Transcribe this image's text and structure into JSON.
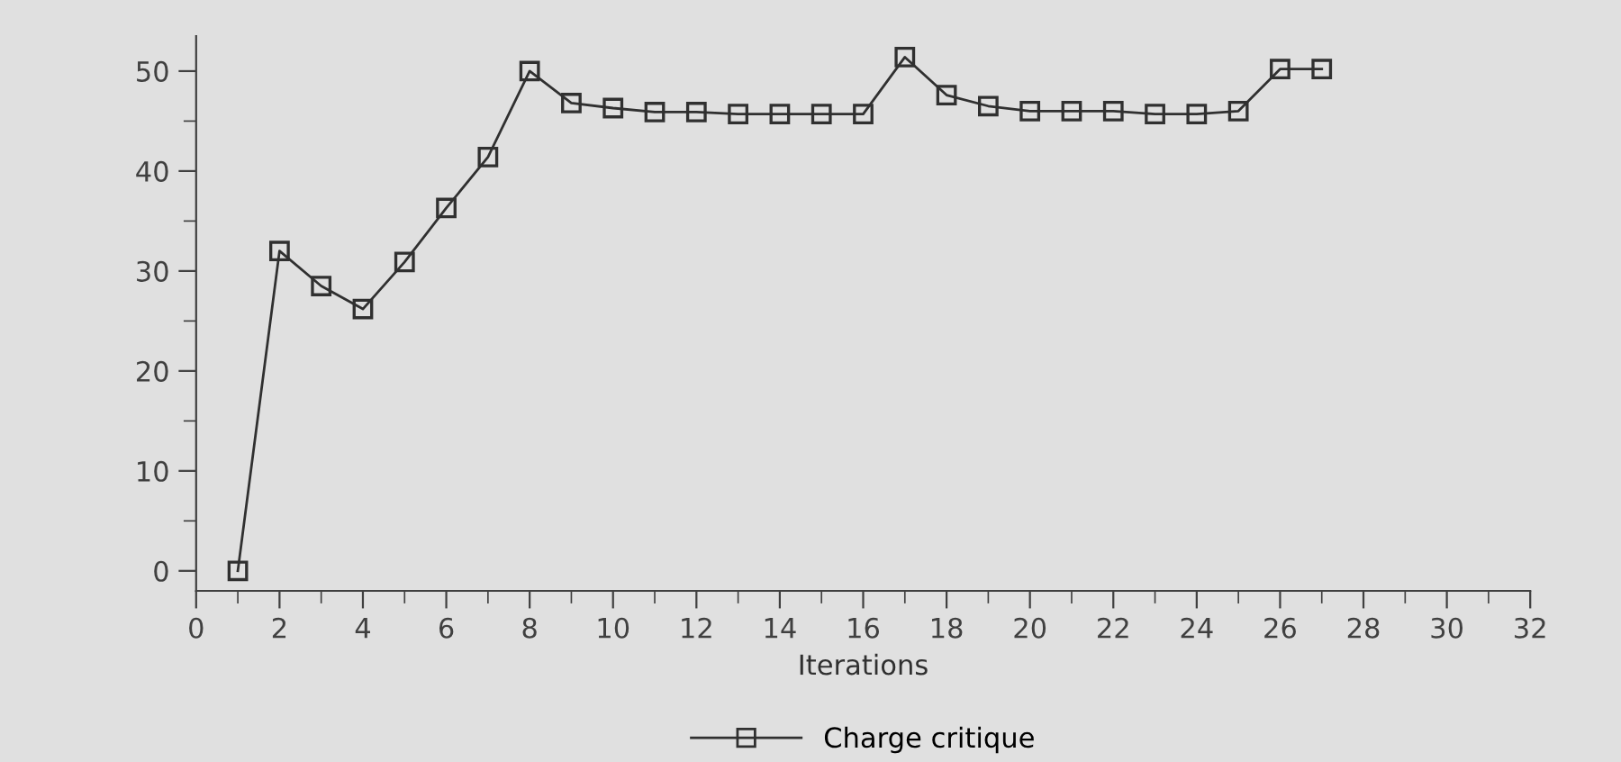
{
  "chart_data": {
    "type": "line",
    "xlabel": "Iterations",
    "x": [
      1,
      2,
      3,
      4,
      5,
      6,
      7,
      8,
      9,
      10,
      11,
      12,
      13,
      14,
      15,
      16,
      17,
      18,
      19,
      20,
      21,
      22,
      23,
      24,
      25,
      26,
      27
    ],
    "series": [
      {
        "name": "Charge critique",
        "color": "#303030",
        "values": [
          0,
          32,
          28.5,
          26.2,
          30.9,
          36.3,
          41.4,
          50,
          46.8,
          46.3,
          45.9,
          45.9,
          45.7,
          45.7,
          45.7,
          45.7,
          51.4,
          47.6,
          46.5,
          46,
          46,
          46,
          45.7,
          45.7,
          46,
          50.2,
          50.2
        ]
      }
    ],
    "xlim": [
      0,
      32
    ],
    "ylim": [
      -2,
      53.5
    ],
    "xticks": [
      0,
      {
        "value": 1,
        "label": null
      },
      2,
      {
        "value": 3,
        "label": null
      },
      4,
      {
        "value": 5,
        "label": null
      },
      6,
      {
        "value": 7,
        "label": null
      },
      8,
      {
        "value": 9,
        "label": null
      },
      10,
      {
        "value": 11,
        "label": null
      },
      12,
      {
        "value": 13,
        "label": null
      },
      14,
      {
        "value": 15,
        "label": null
      },
      16,
      {
        "value": 17,
        "label": null
      },
      18,
      {
        "value": 19,
        "label": null
      },
      20,
      {
        "value": 21,
        "label": null
      },
      22,
      {
        "value": 23,
        "label": null
      },
      24,
      {
        "value": 25,
        "label": null
      },
      26,
      {
        "value": 27,
        "label": null
      },
      28,
      {
        "value": 29,
        "label": null
      },
      30,
      {
        "value": 31,
        "label": null
      },
      32
    ],
    "yticks": [
      0,
      {
        "value": 5,
        "label": null
      },
      10,
      {
        "value": 15,
        "label": null
      },
      20,
      {
        "value": 25,
        "label": null
      },
      30,
      {
        "value": 35,
        "label": null
      },
      40,
      {
        "value": 45,
        "label": null
      },
      50
    ],
    "marker": "square",
    "line_style": "solid",
    "grid": false,
    "legend": "bottom"
  }
}
